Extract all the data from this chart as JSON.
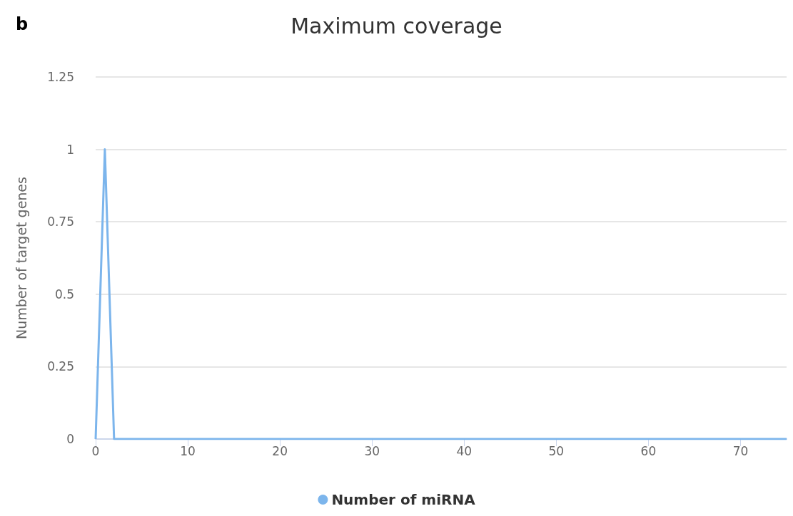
{
  "chart_data": {
    "type": "line",
    "title": "Maximum coverage",
    "ylabel": "Number of target genes",
    "annotations": [
      "b"
    ],
    "x": [
      0,
      1,
      2,
      3,
      4,
      5,
      6,
      7,
      8,
      9,
      10,
      11,
      12,
      13,
      14,
      15,
      16,
      17,
      18,
      19,
      20,
      21,
      22,
      23,
      24,
      25,
      26,
      27,
      28,
      29,
      30,
      31,
      32,
      33,
      34,
      35,
      36,
      37,
      38,
      39,
      40,
      41,
      42,
      43,
      44,
      45,
      46,
      47,
      48,
      49,
      50,
      51,
      52,
      53,
      54,
      55,
      56,
      57,
      58,
      59,
      60,
      61,
      62,
      63,
      64,
      65,
      66,
      67,
      68,
      69,
      70,
      71,
      72,
      73,
      74,
      75
    ],
    "series": [
      {
        "name": "Number of miRNA",
        "color": "#7cb5ec",
        "values": [
          0,
          1,
          0,
          0,
          0,
          0,
          0,
          0,
          0,
          0,
          0,
          0,
          0,
          0,
          0,
          0,
          0,
          0,
          0,
          0,
          0,
          0,
          0,
          0,
          0,
          0,
          0,
          0,
          0,
          0,
          0,
          0,
          0,
          0,
          0,
          0,
          0,
          0,
          0,
          0,
          0,
          0,
          0,
          0,
          0,
          0,
          0,
          0,
          0,
          0,
          0,
          0,
          0,
          0,
          0,
          0,
          0,
          0,
          0,
          0,
          0,
          0,
          0,
          0,
          0,
          0,
          0,
          0,
          0,
          0,
          0,
          0,
          0,
          0,
          0,
          0
        ]
      }
    ],
    "xlim": [
      0,
      75
    ],
    "xticks": [
      0,
      10,
      20,
      30,
      40,
      50,
      60,
      70
    ],
    "ylim": [
      0,
      1.25
    ],
    "yticks": [
      0,
      0.25,
      0.5,
      0.75,
      1,
      1.25
    ],
    "grid": "y",
    "legend": "bottom"
  }
}
